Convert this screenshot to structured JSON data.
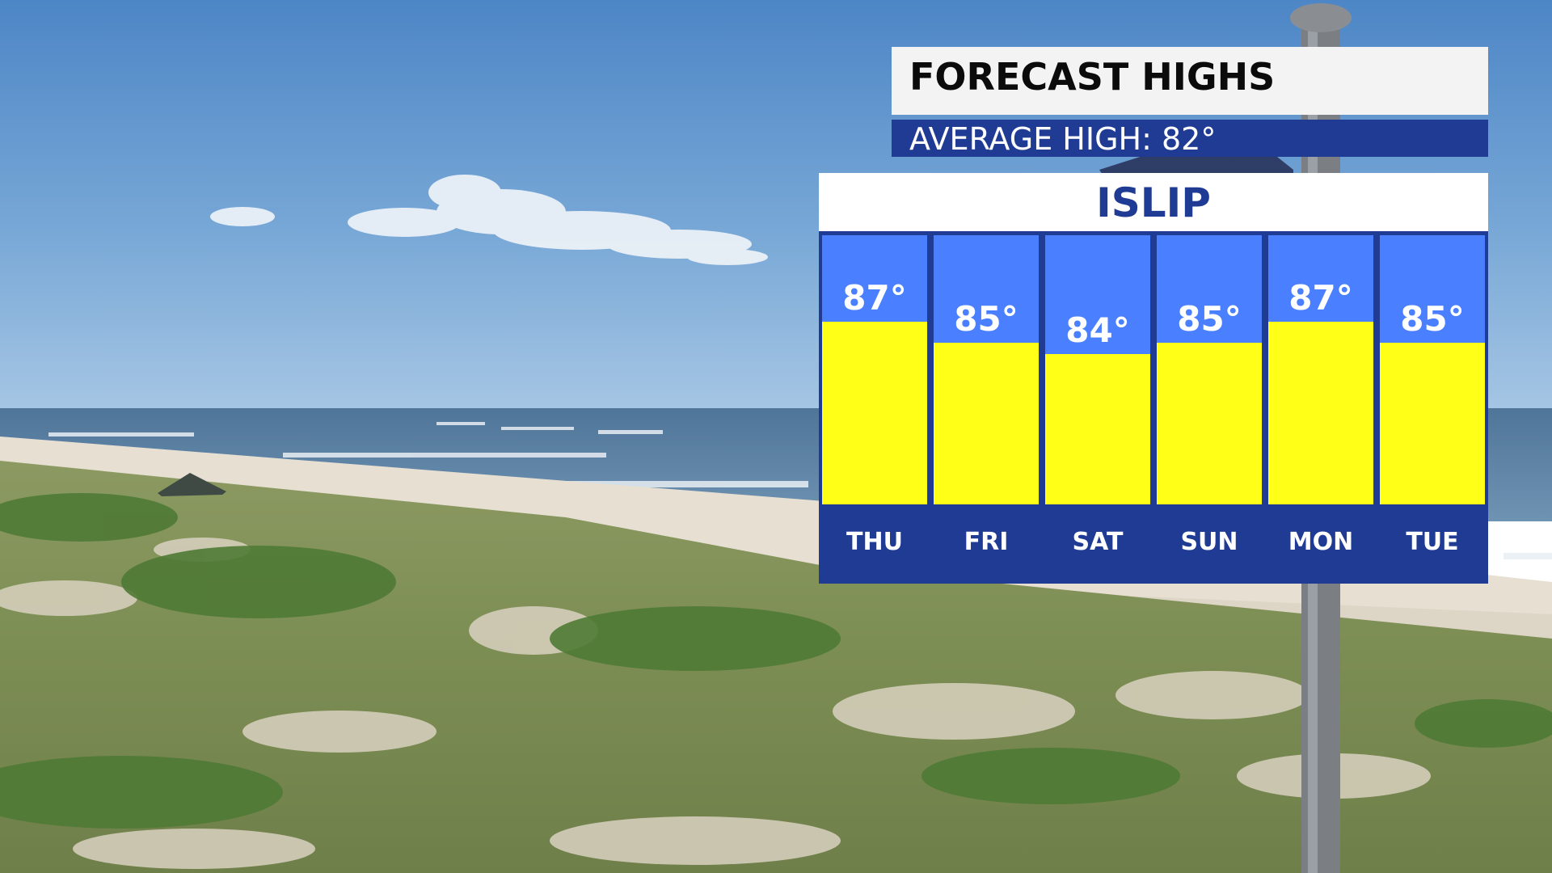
{
  "header": {
    "title": "FORECAST HIGHS",
    "subtitle": "AVERAGE HIGH: 82°"
  },
  "location": "ISLIP",
  "colors": {
    "column_bg": "#4a80ff",
    "bar": "#ffff17",
    "dark_blue": "#1f3b93",
    "title_bg": "#f3f3f3"
  },
  "chart_data": {
    "type": "bar",
    "title": "FORECAST HIGHS",
    "subtitle": "AVERAGE HIGH: 82°",
    "categories": [
      "THU",
      "FRI",
      "SAT",
      "SUN",
      "MON",
      "TUE"
    ],
    "values": [
      87,
      85,
      84,
      85,
      87,
      85
    ],
    "value_labels": [
      "87°",
      "85°",
      "84°",
      "85°",
      "87°",
      "85°"
    ],
    "unit": "°F",
    "ylim": [
      70,
      95
    ]
  }
}
